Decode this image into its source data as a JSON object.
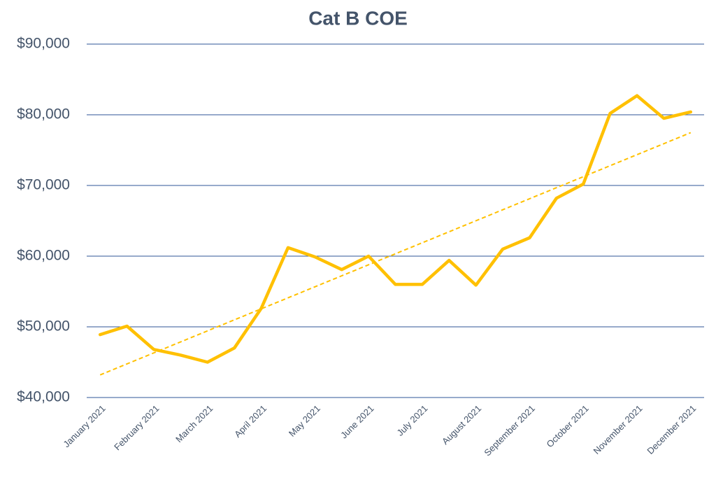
{
  "chart_data": {
    "type": "line",
    "title": "Cat B COE",
    "categories": [
      "January 2021",
      null,
      "February 2021",
      null,
      "March 2021",
      null,
      "April 2021",
      null,
      "May 2021",
      null,
      "June 2021",
      null,
      "July 2021",
      null,
      "August 2021",
      null,
      "September 2021",
      null,
      "October 2021",
      null,
      "November 2021",
      null,
      "December 2021"
    ],
    "series": [
      {
        "name": "Cat B COE",
        "color": "#ffc000",
        "values": [
          48900,
          50100,
          46800,
          46000,
          45000,
          47000,
          52600,
          61200,
          59900,
          58100,
          60000,
          56000,
          56000,
          59400,
          55900,
          61000,
          62600,
          68200,
          70200,
          80200,
          82700,
          79500,
          80400
        ]
      }
    ],
    "ylim": [
      40000,
      90000
    ],
    "yticks": [
      {
        "value": 40000,
        "label": "$40,000"
      },
      {
        "value": 50000,
        "label": "$50,000"
      },
      {
        "value": 60000,
        "label": "$60,000"
      },
      {
        "value": 70000,
        "label": "$70,000"
      },
      {
        "value": 80000,
        "label": "$80,000"
      },
      {
        "value": 90000,
        "label": "$90,000"
      }
    ],
    "grid": true,
    "trendline": true
  }
}
